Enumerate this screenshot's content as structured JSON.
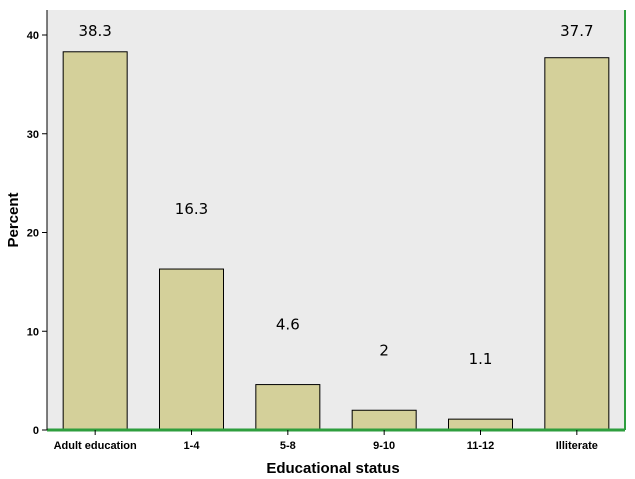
{
  "chart_data": {
    "type": "bar",
    "categories": [
      "Adult education",
      "1-4",
      "5-8",
      "9-10",
      "11-12",
      "Illiterate"
    ],
    "values": [
      38.3,
      16.3,
      4.6,
      2,
      1.1,
      37.7
    ],
    "data_labels": [
      "38.3",
      "16.3",
      "4.6",
      "2",
      "1.1",
      "37.7"
    ],
    "xlabel": "Educational status",
    "ylabel": "Percent",
    "ylim": [
      0,
      40
    ],
    "yticks": [
      "0",
      "10",
      "20",
      "30",
      "40"
    ],
    "grid": false,
    "legend": "none",
    "colors": {
      "bar_fill": "#d4d09a",
      "bar_stroke": "#000000",
      "plot_background": "#ebebeb",
      "baseline": "#2e9e3e"
    }
  }
}
